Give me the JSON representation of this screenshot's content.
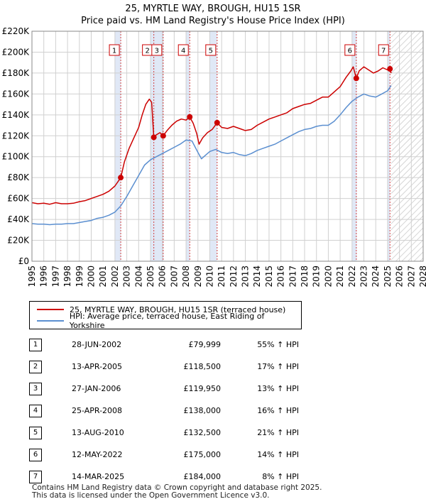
{
  "title": {
    "line1": "25, MYRTLE WAY, BROUGH, HU15 1SR",
    "line2": "Price paid vs. HM Land Registry's House Price Index (HPI)"
  },
  "legend": {
    "property_label": "25, MYRTLE WAY, BROUGH, HU15 1SR (terraced house)",
    "hpi_label": "HPI: Average price, terraced house, East Riding of Yorkshire"
  },
  "colors": {
    "property": "#cc0000",
    "hpi": "#5b8fd0",
    "shade": "#dde6f5",
    "grid": "#d0d0d0"
  },
  "sales": [
    {
      "num": "1",
      "date": "28-JUN-2002",
      "price": "£79,999",
      "hpi_change": "55% ↑ HPI"
    },
    {
      "num": "2",
      "date": "13-APR-2005",
      "price": "£118,500",
      "hpi_change": "17% ↑ HPI"
    },
    {
      "num": "3",
      "date": "27-JAN-2006",
      "price": "£119,950",
      "hpi_change": "13% ↑ HPI"
    },
    {
      "num": "4",
      "date": "25-APR-2008",
      "price": "£138,000",
      "hpi_change": "16% ↑ HPI"
    },
    {
      "num": "5",
      "date": "13-AUG-2010",
      "price": "£132,500",
      "hpi_change": "21% ↑ HPI"
    },
    {
      "num": "6",
      "date": "12-MAY-2022",
      "price": "£175,000",
      "hpi_change": "14% ↑ HPI"
    },
    {
      "num": "7",
      "date": "14-MAR-2025",
      "price": "£184,000",
      "hpi_change": "8% ↑ HPI"
    }
  ],
  "footer": {
    "line1": "Contains HM Land Registry data © Crown copyright and database right 2025.",
    "line2": "This data is licensed under the Open Government Licence v3.0."
  },
  "chart_data": {
    "type": "line",
    "title": "25, MYRTLE WAY, BROUGH, HU15 1SR",
    "subtitle": "Price paid vs. HM Land Registry's House Price Index (HPI)",
    "xlabel": "",
    "ylabel": "",
    "xlim": [
      1995,
      2028
    ],
    "ylim": [
      0,
      220000
    ],
    "y_ticks": [
      0,
      20000,
      40000,
      60000,
      80000,
      100000,
      120000,
      140000,
      160000,
      180000,
      200000,
      220000
    ],
    "y_tick_labels": [
      "£0",
      "£20K",
      "£40K",
      "£60K",
      "£80K",
      "£100K",
      "£120K",
      "£140K",
      "£160K",
      "£180K",
      "£200K",
      "£220K"
    ],
    "x_ticks": [
      1995,
      1996,
      1997,
      1998,
      1999,
      2000,
      2001,
      2002,
      2003,
      2004,
      2005,
      2006,
      2007,
      2008,
      2009,
      2010,
      2011,
      2012,
      2013,
      2014,
      2015,
      2016,
      2017,
      2018,
      2019,
      2020,
      2021,
      2022,
      2023,
      2024,
      2025,
      2026,
      2027,
      2028
    ],
    "grid": true,
    "legend_position": "below-chart",
    "shaded_periods": [
      [
        2002.0,
        2002.5
      ],
      [
        2005.0,
        2006.1
      ],
      [
        2008.0,
        2008.3
      ],
      [
        2010.0,
        2010.6
      ],
      [
        2022.0,
        2022.4
      ],
      [
        2025.0,
        2025.2
      ]
    ],
    "future_hatch_from": 2025.3,
    "sale_markers": [
      {
        "label": "1",
        "x": 2002.49,
        "y": 79999
      },
      {
        "label": "2",
        "x": 2005.28,
        "y": 118500
      },
      {
        "label": "3",
        "x": 2006.07,
        "y": 119950
      },
      {
        "label": "4",
        "x": 2008.31,
        "y": 138000
      },
      {
        "label": "5",
        "x": 2010.62,
        "y": 132500
      },
      {
        "label": "6",
        "x": 2022.36,
        "y": 175000
      },
      {
        "label": "7",
        "x": 2025.2,
        "y": 184000
      }
    ],
    "series": [
      {
        "name": "25, MYRTLE WAY, BROUGH, HU15 1SR (terraced house)",
        "color": "#cc0000",
        "x": [
          1995.0,
          1995.5,
          1996.0,
          1996.5,
          1997.0,
          1997.5,
          1998.0,
          1998.5,
          1999.0,
          1999.5,
          2000.0,
          2000.5,
          2001.0,
          2001.5,
          2002.0,
          2002.49,
          2002.8,
          2003.2,
          2003.6,
          2004.0,
          2004.3,
          2004.6,
          2004.9,
          2005.1,
          2005.28,
          2005.5,
          2005.8,
          2006.07,
          2006.4,
          2006.8,
          2007.2,
          2007.6,
          2008.0,
          2008.31,
          2008.6,
          2008.9,
          2009.1,
          2009.4,
          2009.8,
          2010.2,
          2010.62,
          2011.0,
          2011.5,
          2012.0,
          2012.5,
          2013.0,
          2013.5,
          2014.0,
          2014.5,
          2015.0,
          2015.5,
          2016.0,
          2016.5,
          2017.0,
          2017.5,
          2018.0,
          2018.5,
          2019.0,
          2019.5,
          2020.0,
          2020.5,
          2021.0,
          2021.5,
          2021.9,
          2022.1,
          2022.36,
          2022.6,
          2023.0,
          2023.4,
          2023.8,
          2024.2,
          2024.6,
          2025.0,
          2025.2,
          2025.3
        ],
        "y": [
          56000,
          55000,
          55500,
          54500,
          56000,
          55000,
          55000,
          55500,
          57000,
          58000,
          60000,
          62000,
          64000,
          67000,
          72000,
          79999,
          95000,
          108000,
          118000,
          128000,
          140000,
          150000,
          155000,
          152000,
          118500,
          121000,
          123000,
          119950,
          125000,
          130000,
          134000,
          136000,
          135000,
          138000,
          132000,
          122000,
          112000,
          118000,
          123000,
          126000,
          132500,
          128000,
          127000,
          129000,
          127000,
          125000,
          126000,
          130000,
          133000,
          136000,
          138000,
          140000,
          142000,
          146000,
          148000,
          150000,
          151000,
          154000,
          157000,
          157000,
          162000,
          167000,
          176000,
          182000,
          186000,
          175000,
          182000,
          186000,
          183000,
          180000,
          182000,
          185000,
          183000,
          184000,
          180000
        ]
      },
      {
        "name": "HPI: Average price, terraced house, East Riding of Yorkshire",
        "color": "#5b8fd0",
        "x": [
          1995.0,
          1995.5,
          1996.0,
          1996.5,
          1997.0,
          1997.5,
          1998.0,
          1998.5,
          1999.0,
          1999.5,
          2000.0,
          2000.5,
          2001.0,
          2001.5,
          2002.0,
          2002.5,
          2003.0,
          2003.5,
          2004.0,
          2004.5,
          2005.0,
          2005.5,
          2006.0,
          2006.5,
          2007.0,
          2007.5,
          2008.0,
          2008.5,
          2009.0,
          2009.3,
          2009.7,
          2010.0,
          2010.5,
          2011.0,
          2011.5,
          2012.0,
          2012.5,
          2013.0,
          2013.5,
          2014.0,
          2014.5,
          2015.0,
          2015.5,
          2016.0,
          2016.5,
          2017.0,
          2017.5,
          2018.0,
          2018.5,
          2019.0,
          2019.5,
          2020.0,
          2020.5,
          2021.0,
          2021.5,
          2022.0,
          2022.5,
          2023.0,
          2023.5,
          2024.0,
          2024.5,
          2025.0,
          2025.3
        ],
        "y": [
          36000,
          35500,
          35500,
          35000,
          35500,
          35500,
          36000,
          36000,
          37000,
          38000,
          39000,
          41000,
          42000,
          44000,
          47000,
          53000,
          62000,
          72000,
          82000,
          92000,
          97000,
          100000,
          103000,
          106000,
          109000,
          112000,
          116000,
          115000,
          104000,
          98000,
          102000,
          105000,
          107000,
          104000,
          103000,
          104000,
          102000,
          101000,
          103000,
          106000,
          108000,
          110000,
          112000,
          115000,
          118000,
          121000,
          124000,
          126000,
          127000,
          129000,
          130000,
          130000,
          134000,
          140000,
          147000,
          153000,
          157000,
          160000,
          158000,
          157000,
          160000,
          163000,
          168000
        ]
      }
    ]
  }
}
